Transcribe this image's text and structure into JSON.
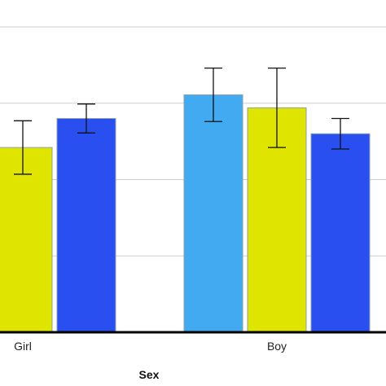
{
  "chart_data": {
    "type": "bar",
    "title": "",
    "xlabel": "Sex",
    "ylabel": "",
    "categories": [
      "Girl",
      "Boy"
    ],
    "ylim": [
      0,
      4
    ],
    "gridlines": [
      1,
      2,
      3,
      4
    ],
    "grid": true,
    "legend": "none",
    "series": [
      {
        "color": "#42aaf0",
        "values": [
          null,
          3.11
        ],
        "error": [
          null,
          0.35
        ]
      },
      {
        "color": "#dfe400",
        "values": [
          2.42,
          2.94
        ],
        "error": [
          0.35,
          0.52
        ]
      },
      {
        "color": "#2a4ff0",
        "values": [
          2.8,
          2.6
        ],
        "error": [
          0.19,
          0.2
        ]
      }
    ]
  }
}
